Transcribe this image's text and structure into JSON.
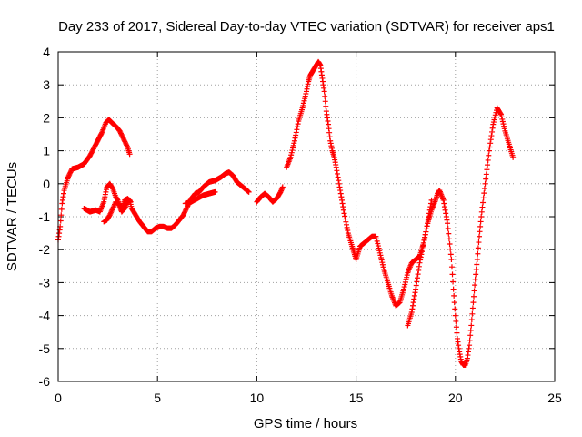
{
  "chart_data": {
    "type": "scatter",
    "title": "Day 233 of 2017, Sidereal Day-to-day VTEC variation (SDTVAR) for receiver aps1",
    "xlabel": "GPS time / hours",
    "ylabel": "SDTVAR / TECUs",
    "xlim": [
      0,
      25
    ],
    "ylim": [
      -6,
      4
    ],
    "x_ticks": [
      "0",
      "5",
      "10",
      "15",
      "20",
      "25"
    ],
    "y_ticks": [
      "-6",
      "-5",
      "-4",
      "-3",
      "-2",
      "-1",
      "0",
      "1",
      "2",
      "3",
      "4"
    ],
    "grid": true,
    "marker": "+",
    "color": "#ff0000",
    "series": [
      {
        "x": [
          0.0,
          0.1,
          0.2,
          0.3,
          0.5,
          0.7,
          1.0,
          1.3,
          1.6,
          1.9,
          2.2,
          2.4,
          2.55,
          2.7,
          2.9,
          3.1,
          3.3,
          3.5,
          3.6
        ],
        "y": [
          -1.7,
          -1.3,
          -0.6,
          -0.2,
          0.2,
          0.45,
          0.5,
          0.6,
          0.85,
          1.2,
          1.55,
          1.85,
          1.95,
          1.85,
          1.75,
          1.6,
          1.35,
          1.1,
          0.9
        ]
      },
      {
        "x": [
          1.3,
          1.6,
          1.9,
          2.1,
          2.3,
          2.45,
          2.6,
          2.75,
          2.9,
          3.0,
          3.1,
          3.2,
          3.35,
          3.5,
          3.6,
          3.7,
          3.9,
          4.1,
          4.3,
          4.5,
          4.7,
          4.9,
          5.1,
          5.3,
          5.5,
          5.7,
          5.9,
          6.1,
          6.3,
          6.5,
          6.7,
          6.9,
          7.1,
          7.3,
          7.6,
          7.9,
          8.2,
          8.4,
          8.6,
          8.8,
          9.0,
          9.2,
          9.4,
          9.6
        ],
        "y": [
          -0.75,
          -0.85,
          -0.8,
          -0.85,
          -0.55,
          -0.1,
          0.0,
          -0.15,
          -0.4,
          -0.5,
          -0.7,
          -0.85,
          -0.75,
          -0.55,
          -0.5,
          -0.75,
          -0.95,
          -1.15,
          -1.3,
          -1.45,
          -1.45,
          -1.35,
          -1.3,
          -1.3,
          -1.35,
          -1.35,
          -1.25,
          -1.1,
          -0.95,
          -0.7,
          -0.45,
          -0.3,
          -0.25,
          -0.1,
          0.05,
          0.1,
          0.2,
          0.3,
          0.35,
          0.25,
          0.05,
          -0.05,
          -0.15,
          -0.25
        ]
      },
      {
        "x": [
          2.3,
          2.45,
          2.6,
          2.75,
          2.9,
          3.05,
          3.2,
          3.35,
          3.5,
          3.65
        ],
        "y": [
          -1.15,
          -1.1,
          -0.95,
          -0.75,
          -0.55,
          -0.6,
          -0.75,
          -0.5,
          -0.45,
          -0.55
        ]
      },
      {
        "x": [
          6.4,
          6.7,
          7.0,
          7.3,
          7.6,
          7.9
        ],
        "y": [
          -0.6,
          -0.55,
          -0.45,
          -0.35,
          -0.3,
          -0.25
        ]
      },
      {
        "x": [
          10.0,
          10.2,
          10.4,
          10.6,
          10.8,
          11.0,
          11.2,
          11.3
        ],
        "y": [
          -0.55,
          -0.4,
          -0.3,
          -0.4,
          -0.55,
          -0.45,
          -0.25,
          -0.1
        ]
      },
      {
        "x": [
          11.5,
          11.7,
          11.9,
          12.1,
          12.3,
          12.5,
          12.6,
          12.7,
          12.8,
          12.9,
          13.0,
          13.1,
          13.2,
          13.3,
          13.4,
          13.5,
          13.6,
          13.7,
          13.8,
          13.9,
          14.0,
          14.2,
          14.4,
          14.6,
          14.8,
          14.9,
          15.0,
          15.2,
          15.4,
          15.6,
          15.8,
          16.0,
          16.2,
          16.4,
          16.6,
          16.8,
          17.0,
          17.2,
          17.4,
          17.6,
          17.8,
          18.0,
          18.2,
          18.4,
          18.6,
          18.8,
          19.0,
          19.1,
          19.2,
          19.4,
          19.6,
          19.8,
          19.9,
          20.0,
          20.1,
          20.2,
          20.3,
          20.4,
          20.5,
          20.6,
          20.7,
          20.8,
          20.9,
          21.0,
          21.1,
          21.2,
          21.3,
          21.5,
          21.7,
          21.9,
          22.1,
          22.3,
          22.5,
          22.7,
          22.9
        ],
        "y": [
          0.5,
          0.8,
          1.3,
          1.9,
          2.3,
          2.8,
          3.1,
          3.3,
          3.4,
          3.5,
          3.6,
          3.7,
          3.6,
          3.2,
          2.8,
          2.2,
          1.8,
          1.3,
          1.0,
          0.8,
          0.5,
          -0.2,
          -0.9,
          -1.5,
          -1.9,
          -2.1,
          -2.3,
          -1.9,
          -1.8,
          -1.7,
          -1.6,
          -1.6,
          -2.1,
          -2.6,
          -3.0,
          -3.4,
          -3.7,
          -3.6,
          -3.2,
          -2.7,
          -2.4,
          -2.3,
          -2.2,
          -1.8,
          -1.2,
          -0.8,
          -0.5,
          -0.3,
          -0.2,
          -0.5,
          -1.2,
          -2.3,
          -3.2,
          -4.0,
          -4.7,
          -5.1,
          -5.4,
          -5.5,
          -5.5,
          -5.3,
          -4.9,
          -4.3,
          -3.6,
          -2.9,
          -2.3,
          -1.6,
          -1.0,
          0.0,
          1.0,
          1.8,
          2.3,
          2.1,
          1.6,
          1.2,
          0.8
        ]
      },
      {
        "x": [
          17.6,
          17.8,
          18.0,
          18.2,
          18.4,
          18.6,
          18.8
        ],
        "y": [
          -4.3,
          -3.9,
          -3.2,
          -2.4,
          -1.8,
          -1.2,
          -0.5
        ]
      }
    ]
  }
}
